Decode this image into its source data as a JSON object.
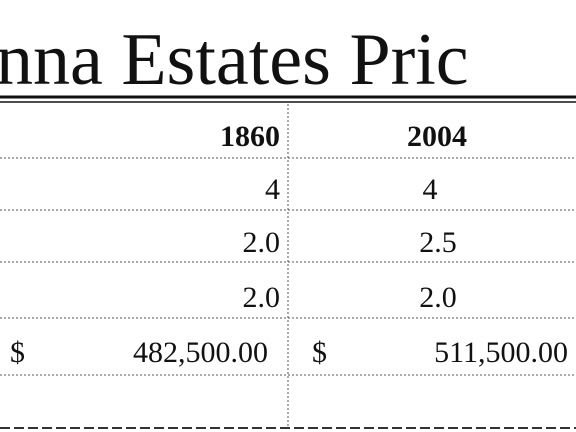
{
  "title": "nna Estates Pric",
  "table": {
    "header": [
      "1860",
      "2004"
    ],
    "rows": [
      [
        "4",
        "4"
      ],
      [
        "2.0",
        "2.5"
      ],
      [
        "2.0",
        "2.0"
      ]
    ],
    "price": [
      {
        "symbol": "$",
        "amount": "482,500.00"
      },
      {
        "symbol": "$",
        "amount": "511,500.00"
      }
    ]
  }
}
